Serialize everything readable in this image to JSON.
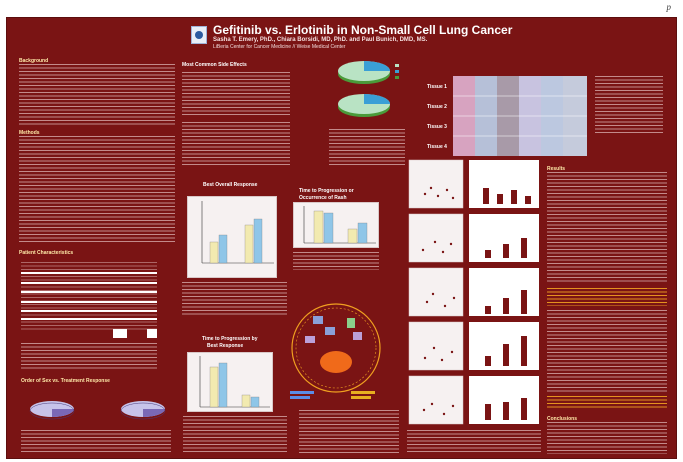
{
  "page_mark": "p",
  "poster": {
    "title": "Gefitinib vs. Erlotinib in Non-Small Cell Lung Cancer",
    "authors": "Sasha T. Emery, PhD., Chiara Borsidi, MD, PhD. and Paul Bunich, DMD, MS.",
    "affiliation": "LiBeria Center for Cancer Medicine // Weise Medical Center",
    "colors": {
      "background": "#7a1414",
      "bar_yellow": "#f2eab0",
      "bar_blue": "#8fc6e8",
      "highlight": "#f0a020"
    },
    "section_heads": [
      "Background",
      "Methods",
      "Patient Characteristics",
      "Most Common Side Effects",
      "Best Overall Response",
      "Time to Progression or Occurrence of Rash",
      "Results",
      "Conclusions"
    ],
    "ihc_labels": [
      "Tissue 1",
      "Tissue 2",
      "Tissue 3",
      "Tissue 4"
    ]
  },
  "chart_data": [
    {
      "type": "bar",
      "title": "Best Overall Response",
      "categories": [
        "Gefitinib",
        "Erlotinib"
      ],
      "series": [
        {
          "values": [
            4,
            7
          ]
        },
        {
          "values": [
            6,
            8.5
          ]
        }
      ]
    },
    {
      "type": "bar",
      "title": "Time to Progression or Occurrence of Rash",
      "categories": [
        "A",
        "B"
      ],
      "series": [
        {
          "values": [
            9,
            4
          ]
        },
        {
          "values": [
            8.5,
            5.5
          ]
        }
      ]
    },
    {
      "type": "bar",
      "title": "",
      "categories": [
        "A",
        "B"
      ],
      "series": [
        {
          "values": [
            8,
            2.5
          ]
        },
        {
          "values": [
            9,
            2
          ]
        }
      ]
    }
  ]
}
